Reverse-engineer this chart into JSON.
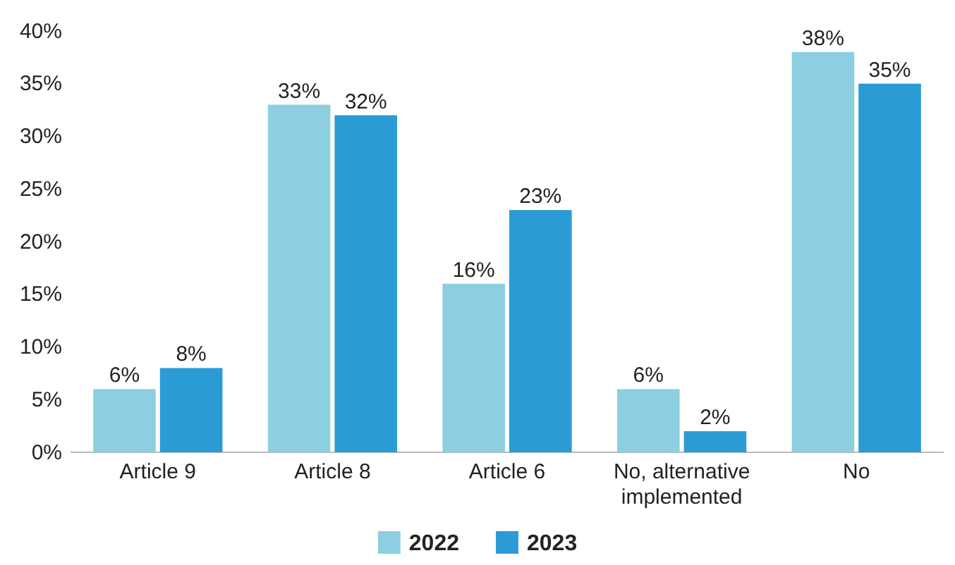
{
  "chart_data": {
    "type": "bar",
    "categories": [
      "Article 9",
      "Article 8",
      "Article 6",
      "No, alternative implemented",
      "No"
    ],
    "series": [
      {
        "name": "2022",
        "color": "#8dcfe0",
        "values": [
          6,
          33,
          16,
          6,
          38
        ],
        "value_labels": [
          "6%",
          "33%",
          "16%",
          "6%",
          "38%"
        ]
      },
      {
        "name": "2023",
        "color": "#2b9bd6",
        "values": [
          8,
          32,
          23,
          2,
          35
        ],
        "value_labels": [
          "8%",
          "32%",
          "23%",
          "2%",
          "35%"
        ]
      }
    ],
    "ylim": [
      0,
      40
    ],
    "yticks": [
      {
        "value": 0,
        "label": "0%"
      },
      {
        "value": 5,
        "label": "5%"
      },
      {
        "value": 10,
        "label": "10%"
      },
      {
        "value": 15,
        "label": "15%"
      },
      {
        "value": 20,
        "label": "20%"
      },
      {
        "value": 25,
        "label": "25%"
      },
      {
        "value": 30,
        "label": "30%"
      },
      {
        "value": 35,
        "label": "35%"
      },
      {
        "value": 40,
        "label": "40%"
      }
    ],
    "legend": "bottom"
  }
}
